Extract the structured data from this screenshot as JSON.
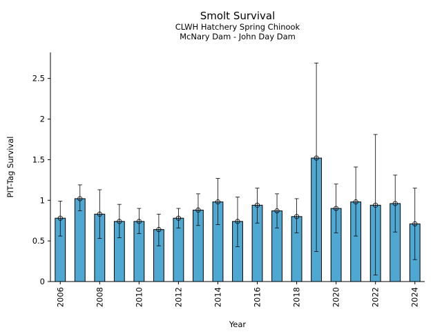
{
  "chart_data": {
    "type": "bar",
    "title": "Smolt Survival",
    "subtitle_lines": [
      "CLWH Hatchery Spring Chinook",
      "McNary Dam - John Day Dam"
    ],
    "xlabel": "Year",
    "ylabel": "PIT-Tag Survival",
    "ylim": [
      0,
      2.82
    ],
    "yticks": [
      0,
      0.5,
      1,
      1.5,
      2,
      2.5
    ],
    "ytick_labels": [
      "0",
      "0.5",
      "1",
      "1.5",
      "2",
      "2.5"
    ],
    "xtick_labels": [
      "2006",
      "2008",
      "2010",
      "2012",
      "2014",
      "2016",
      "2018",
      "2020",
      "2022",
      "2024"
    ],
    "grid": false,
    "legend": "none",
    "bar_color": "#4fa8d2",
    "categories": [
      "2006",
      "2007",
      "2008",
      "2009",
      "2010",
      "2011",
      "2012",
      "2013",
      "2014",
      "2015",
      "2016",
      "2017",
      "2018",
      "2019",
      "2020",
      "2021",
      "2022",
      "2023",
      "2024"
    ],
    "values": [
      0.78,
      1.02,
      0.83,
      0.74,
      0.74,
      0.64,
      0.78,
      0.88,
      0.98,
      0.74,
      0.94,
      0.87,
      0.8,
      1.52,
      0.9,
      0.98,
      0.94,
      0.96,
      0.71
    ],
    "err_low": [
      0.56,
      0.87,
      0.53,
      0.54,
      0.59,
      0.44,
      0.66,
      0.69,
      0.7,
      0.43,
      0.72,
      0.66,
      0.6,
      0.37,
      0.6,
      0.56,
      0.08,
      0.61,
      0.27
    ],
    "err_high": [
      0.99,
      1.19,
      1.13,
      0.95,
      0.9,
      0.83,
      0.9,
      1.08,
      1.27,
      1.04,
      1.15,
      1.08,
      1.02,
      2.69,
      1.2,
      1.41,
      1.81,
      1.31,
      1.15
    ]
  }
}
